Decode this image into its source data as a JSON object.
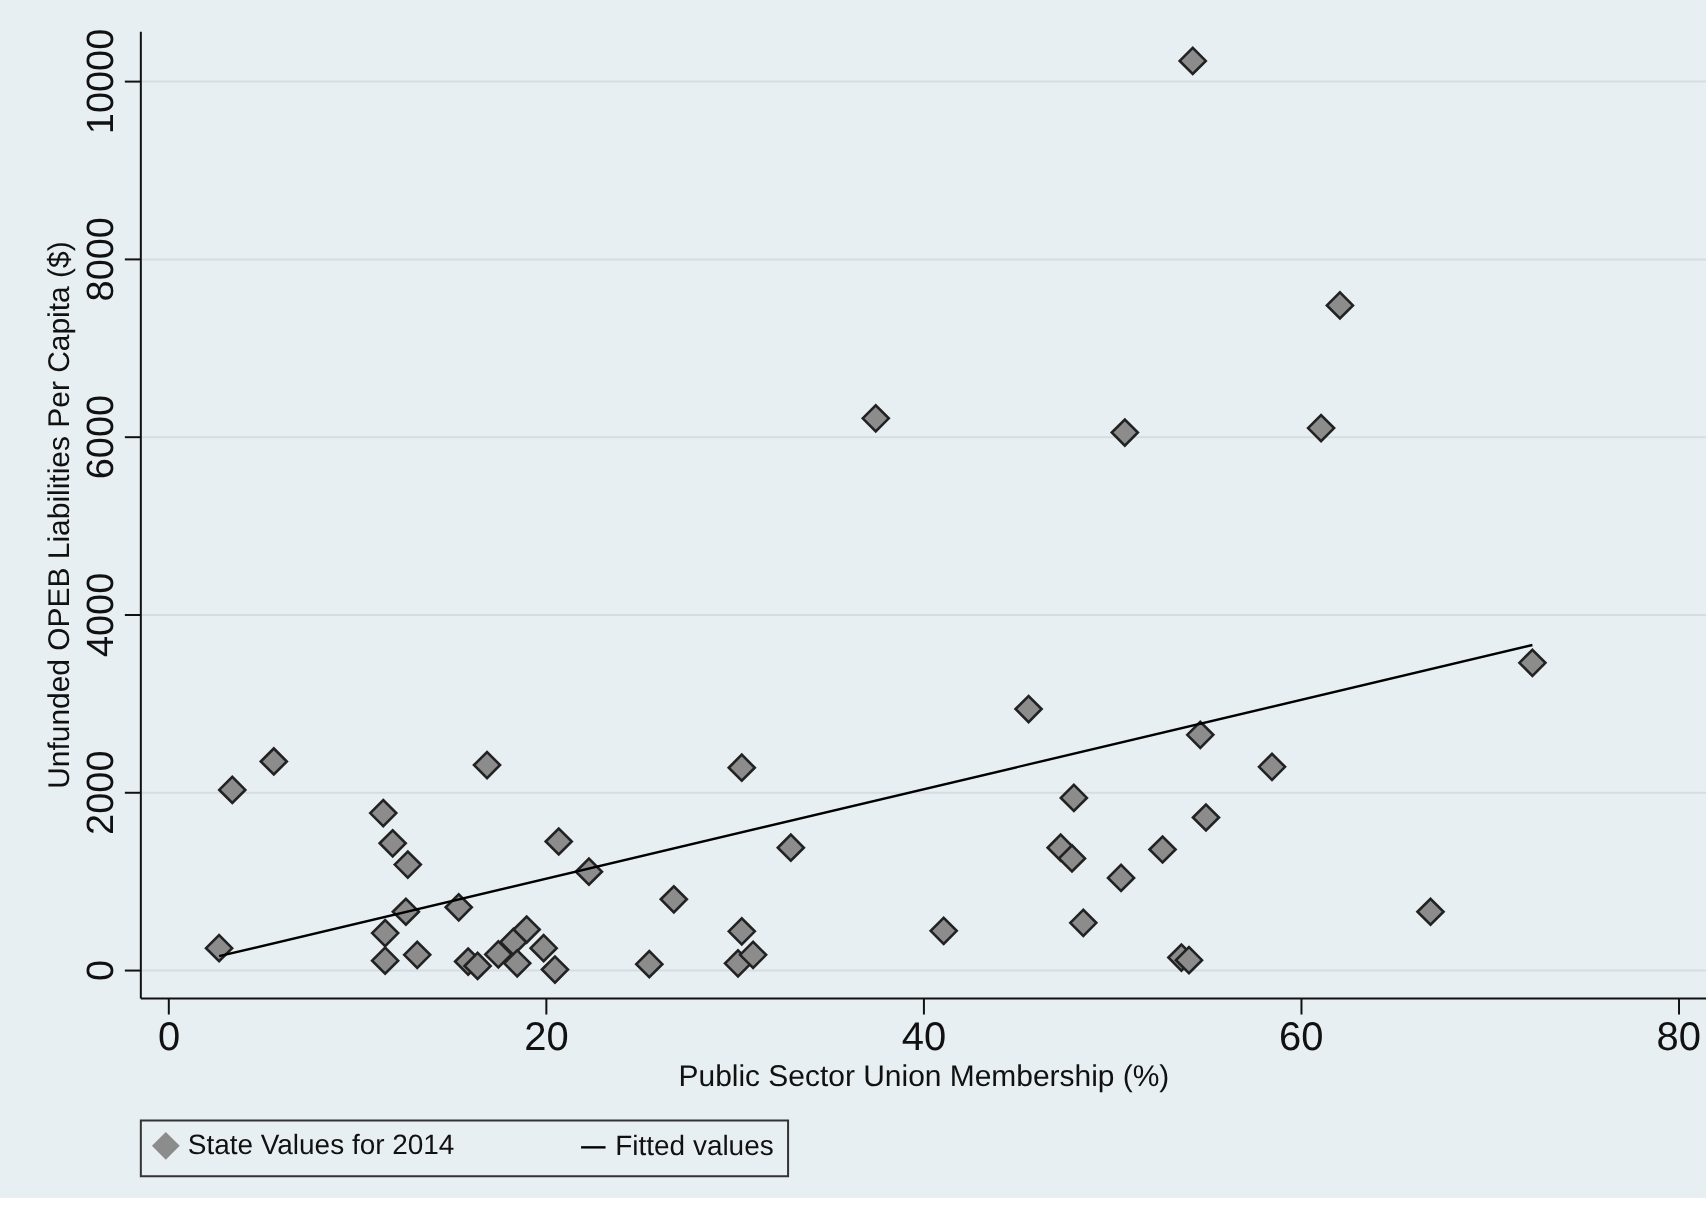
{
  "chart_data": {
    "type": "scatter",
    "xlabel": "Public Sector Union Membership (%)",
    "ylabel": "Unfunded OPEB Liabilities Per Capita ($)",
    "xlim": [
      -1.5,
      81.5
    ],
    "xticks": [
      0,
      20,
      40,
      60,
      80
    ],
    "ylim": [
      -315,
      10560
    ],
    "yticks": [
      0,
      2000,
      4000,
      6000,
      8000,
      10000
    ],
    "grid": "y",
    "legend": "bottom",
    "series": [
      {
        "name": "State Values for 2014",
        "color": "#8c8c8c",
        "marker": "diamond",
        "x": [
          2.7,
          3.4,
          5.6,
          11.4,
          11.9,
          12.7,
          12.6,
          11.5,
          11.5,
          13.2,
          15.4,
          16.9,
          15.9,
          16.4,
          17.5,
          18.3,
          19.0,
          18.5,
          19.9,
          20.5,
          20.7,
          22.3,
          25.5,
          26.8,
          30.4,
          30.4,
          30.2,
          31.0,
          33.0,
          37.5,
          41.1,
          45.6,
          48.0,
          47.3,
          47.9,
          48.5,
          50.5,
          50.7,
          52.7,
          53.7,
          54.1,
          54.3,
          54.7,
          55.0,
          58.5,
          61.1,
          62.1,
          66.9,
          72.3
        ],
        "values": [
          240,
          2020,
          2340,
          1760,
          1420,
          1180,
          650,
          410,
          100,
          165,
          700,
          2300,
          90,
          40,
          170,
          310,
          450,
          70,
          240,
          0,
          1440,
          1100,
          60,
          790,
          2270,
          430,
          70,
          165,
          1370,
          6200,
          435,
          2930,
          1930,
          1370,
          1250,
          525,
          1030,
          6040,
          1350,
          135,
          105,
          10220,
          2640,
          1710,
          2280,
          6090,
          7470,
          650,
          3450
        ]
      },
      {
        "name": "Fitted values",
        "color": "#000000",
        "type": "line",
        "marker": "none",
        "x": [
          2.7,
          72.3
        ],
        "values": [
          150,
          3650
        ]
      }
    ]
  }
}
